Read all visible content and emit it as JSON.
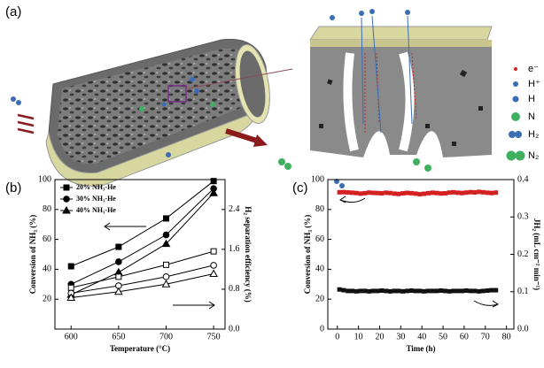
{
  "panels": [
    "(a)",
    "(b)",
    "(c)"
  ],
  "schematic": {
    "legend": [
      "e⁻",
      "H⁺",
      "H",
      "N",
      "H₂",
      "N₂"
    ]
  },
  "chart_data": [
    {
      "type": "line",
      "x_label": "Temperature (°C)",
      "y_label": "Conversion of NH₃ (%)",
      "y2_label": "H₂ separation efficiency (%)",
      "x": [
        600,
        650,
        700,
        750
      ],
      "xlim": [
        583,
        762
      ],
      "xticks": [
        600,
        650,
        700,
        750
      ],
      "ylim": [
        0,
        100
      ],
      "yticks": [
        20,
        40,
        60,
        80,
        100
      ],
      "y2lim": [
        0,
        3
      ],
      "y2ticks": [
        {
          "value": 0,
          "label": "0.0"
        },
        0.8,
        1.6,
        2.4
      ],
      "color": "#000000",
      "series": [
        {
          "name": "20% NH₃-He",
          "marker": "square",
          "fill": "filled",
          "values": [
            42,
            55,
            74,
            99
          ]
        },
        {
          "name": "30% NH₃-He",
          "marker": "circle",
          "fill": "filled",
          "values": [
            30,
            45,
            63,
            94
          ]
        },
        {
          "name": "40% NH₃-He",
          "marker": "triangle",
          "fill": "filled",
          "values": [
            23,
            38,
            57,
            91
          ]
        },
        {
          "marker": "square",
          "fill": "open",
          "axis": "y2",
          "values": [
            0.83,
            1.05,
            1.29,
            1.56
          ]
        },
        {
          "marker": "circle",
          "fill": "open",
          "axis": "y2",
          "values": [
            0.72,
            0.87,
            1.05,
            1.28
          ]
        },
        {
          "marker": "triangle",
          "fill": "open",
          "axis": "y2",
          "values": [
            0.63,
            0.75,
            0.9,
            1.11
          ]
        }
      ]
    },
    {
      "type": "scatter",
      "x_label": "Time (h)",
      "y_label": "Conversion of NH₃ (%)",
      "y2_label": "JH₂ (mL cm⁻² min⁻¹)",
      "x": [
        1,
        3,
        5,
        7,
        9,
        11,
        13,
        15,
        17,
        19,
        21,
        23,
        25,
        27,
        29,
        31,
        33,
        35,
        37,
        39,
        41,
        43,
        45,
        47,
        49,
        51,
        53,
        55,
        57,
        59,
        61,
        63,
        65,
        67,
        69,
        71,
        73,
        75
      ],
      "xlim": [
        -4.5,
        83.5
      ],
      "xticks": [
        0,
        10,
        20,
        30,
        40,
        50,
        60,
        70,
        80
      ],
      "ylim": [
        0,
        100
      ],
      "yticks": [
        0,
        20,
        40,
        60,
        80,
        100
      ],
      "y2lim": [
        0,
        0.4
      ],
      "y2ticks": [
        {
          "value": 0,
          "label": "0.0"
        },
        0.1,
        0.2,
        0.3,
        0.4
      ],
      "series": [
        {
          "color": "#d42020",
          "values": [
            91.5,
            91.6,
            91.4,
            91.2,
            91.0,
            90.6,
            90.9,
            91.3,
            91.1,
            91.0,
            90.8,
            91.2,
            91.0,
            90.6,
            90.4,
            90.8,
            91.1,
            90.9,
            90.6,
            90.2,
            90.5,
            90.9,
            91.2,
            91.0,
            90.7,
            90.8,
            91.3,
            91.5,
            91.2,
            91.0,
            91.3,
            91.6,
            91.4,
            91.8,
            91.5,
            91.2,
            91.0,
            91.3
          ]
        },
        {
          "color": "#111111",
          "axis": "y2",
          "values": [
            0.106,
            0.104,
            0.102,
            0.102,
            0.101,
            0.102,
            0.102,
            0.101,
            0.102,
            0.102,
            0.103,
            0.102,
            0.101,
            0.102,
            0.102,
            0.101,
            0.102,
            0.103,
            0.102,
            0.102,
            0.101,
            0.102,
            0.102,
            0.102,
            0.103,
            0.102,
            0.101,
            0.102,
            0.102,
            0.102,
            0.103,
            0.102,
            0.102,
            0.101,
            0.102,
            0.103,
            0.104,
            0.104
          ]
        }
      ]
    }
  ]
}
